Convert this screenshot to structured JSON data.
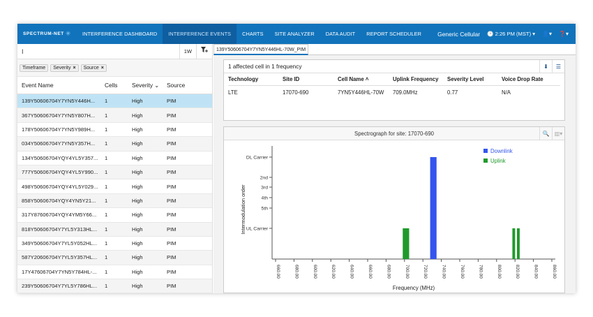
{
  "nav": {
    "logo": "SPECTRUM-NET",
    "items": [
      {
        "label": "INTERFERENCE DASHBOARD",
        "active": false
      },
      {
        "label": "INTERFERENCE EVENTS",
        "active": true
      },
      {
        "label": "CHARTS",
        "active": false
      },
      {
        "label": "SITE ANALYZER",
        "active": false
      },
      {
        "label": "DATA AUDIT",
        "active": false
      },
      {
        "label": "REPORT SCHEDULER",
        "active": false
      }
    ],
    "company": "Generic Cellular",
    "time": "2:26 PM (MST) ▾"
  },
  "toolbar": {
    "search_value": "I",
    "range_button": "1W",
    "filter_icon": "filter-add-icon"
  },
  "chips": [
    "Timeframe",
    "Severity",
    "Source"
  ],
  "table": {
    "headers": {
      "name": "Event Name",
      "cells": "Cells",
      "severity": "Severity",
      "source": "Source"
    },
    "rows": [
      {
        "name": "139Y50606704Y7YN5Y446H...",
        "cells": "1",
        "severity": "High",
        "source": "PIM"
      },
      {
        "name": "367Y50606704Y7YN5Y807H...",
        "cells": "1",
        "severity": "High",
        "source": "PIM"
      },
      {
        "name": "178Y50606704Y7YN5Y989H...",
        "cells": "1",
        "severity": "High",
        "source": "PIM"
      },
      {
        "name": "034Y50606704Y7YN5Y357H...",
        "cells": "1",
        "severity": "High",
        "source": "PIM"
      },
      {
        "name": "134Y50606704YQY4YL5Y357...",
        "cells": "1",
        "severity": "High",
        "source": "PIM"
      },
      {
        "name": "777Y50606704YQY4YL5Y990...",
        "cells": "1",
        "severity": "High",
        "source": "PIM"
      },
      {
        "name": "498Y50606704YQY4YL5Y029...",
        "cells": "1",
        "severity": "High",
        "source": "PIM"
      },
      {
        "name": "858Y50606704YQY4YN5Y21...",
        "cells": "1",
        "severity": "High",
        "source": "PIM"
      },
      {
        "name": "317Y87606704YQY4YM5Y66...",
        "cells": "1",
        "severity": "High",
        "source": "PIM"
      },
      {
        "name": "818Y50606704Y7YL5Y313HL...",
        "cells": "1",
        "severity": "High",
        "source": "PIM"
      },
      {
        "name": "349Y50606704Y7YL5Y052HL...",
        "cells": "1",
        "severity": "High",
        "source": "PIM"
      },
      {
        "name": "587Y20606704Y7YL5Y357HL...",
        "cells": "1",
        "severity": "High",
        "source": "PIM"
      },
      {
        "name": "17Y47606704Y7YN5Y784HL-...",
        "cells": "1",
        "severity": "High",
        "source": "PIM"
      },
      {
        "name": "239Y50606704Y7YL5Y786HL...",
        "cells": "1",
        "severity": "High",
        "source": "PIM"
      }
    ]
  },
  "tab": {
    "label": "139Y50606704Y7YN5Y446HL-70W_PIM"
  },
  "affected": {
    "title": "1 affected cell in 1 frequency",
    "headers": [
      "Technology",
      "Site ID",
      "Cell Name",
      "Uplink Frequency",
      "Severity Level",
      "Voice Drop Rate"
    ],
    "row": [
      "LTE",
      "17070-690",
      "7YN5Y446HL-70W",
      "709.0MHz",
      "0.77",
      "N/A"
    ]
  },
  "spectro": {
    "title": "Spectrograph for site: 17070-690"
  },
  "colors": {
    "nav": "#1173bb",
    "downlink": "#3355ee",
    "uplink": "#1f9a2a",
    "selected_row": "#bfe3f5"
  },
  "chart_data": {
    "type": "bar",
    "xlabel": "Frequency (MHz)",
    "ylabel": "Intermodulation order",
    "x_ticks": [
      "660.00",
      "680.00",
      "600.00",
      "620.00",
      "640.00",
      "660.00",
      "680.00",
      "700.00",
      "720.00",
      "740.00",
      "760.00",
      "780.00",
      "800.00",
      "820.00",
      "840.00",
      "860.00"
    ],
    "y_ticks": [
      "UL Carrier",
      "5th",
      "4th",
      "3rd",
      "2nd",
      "DL Carrier"
    ],
    "legend": [
      "Downlink",
      "Uplink"
    ],
    "legend_position": "top-right",
    "series": [
      {
        "name": "Downlink",
        "bars": [
          {
            "x_start": 733,
            "x_end": 740,
            "level": "DL Carrier"
          }
        ]
      },
      {
        "name": "Uplink",
        "bars": [
          {
            "x_start": 703,
            "x_end": 710,
            "level": "UL Carrier"
          },
          {
            "x_start": 823,
            "x_end": 826,
            "level": "UL Carrier"
          },
          {
            "x_start": 828,
            "x_end": 831,
            "level": "UL Carrier"
          }
        ]
      }
    ]
  }
}
